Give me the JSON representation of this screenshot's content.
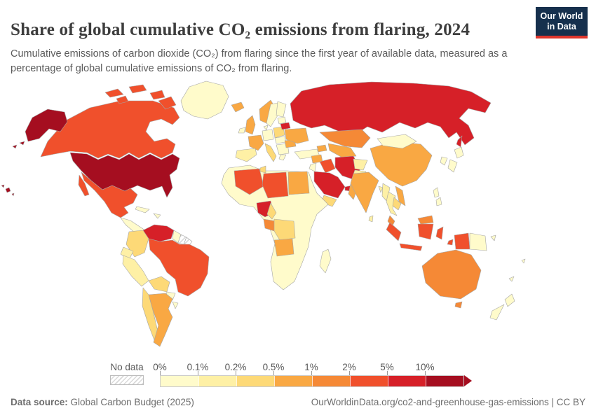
{
  "header": {
    "title": "Share of global cumulative CO₂ emissions from flaring, 2024",
    "subtitle": "Cumulative emissions of carbon dioxide (CO₂) from flaring since the first year of available data, measured as a percentage of global cumulative emissions of CO₂ from flaring.",
    "logo": {
      "line1": "Our World",
      "line2": "in Data",
      "bg": "#16304D",
      "accent": "#DE352C"
    }
  },
  "legend": {
    "no_data_label": "No data",
    "tick_labels": [
      "0%",
      "0.1%",
      "0.2%",
      "0.5%",
      "1%",
      "2%",
      "5%",
      "10%"
    ],
    "bin_colors": [
      "#FFFBCB",
      "#FEF0A5",
      "#FDD977",
      "#F9A843",
      "#F58936",
      "#F0502C",
      "#D62028",
      "#A50E20"
    ]
  },
  "footer": {
    "source_label": "Data source:",
    "source_value": "Global Carbon Budget (2025)",
    "link": "OurWorldinData.org/co2-and-greenhouse-gas-emissions",
    "separator": " | ",
    "license": "CC BY"
  },
  "chart_data": {
    "type": "heatmap",
    "subtype": "world-choropleth-map",
    "title": "Share of global cumulative CO₂ emissions from flaring, 2024",
    "year": "2024",
    "unit": "% of global cumulative CO₂ emissions from flaring",
    "scale_thresholds": [
      "0%",
      "0.1%",
      "0.2%",
      "0.5%",
      "1%",
      "2%",
      "5%",
      "10%"
    ],
    "bin_labels": [
      "<0.1%",
      "0.1–0.2%",
      "0.2–0.5%",
      "0.5–1%",
      "1–2%",
      "2–5%",
      "5–10%",
      ">10%"
    ],
    "bin_colors": [
      "#FFFBCB",
      "#FEF0A5",
      "#FDD977",
      "#F9A843",
      "#F58936",
      "#F0502C",
      "#D62028",
      "#A50E20"
    ],
    "no_data_label": "No data",
    "source": "Global Carbon Budget (2025)",
    "regions": [
      {
        "id": "united-states",
        "name": "United States",
        "bin_index": 7
      },
      {
        "id": "russia",
        "name": "Russia",
        "bin_index": 6
      },
      {
        "id": "venezuela",
        "name": "Venezuela",
        "bin_index": 6
      },
      {
        "id": "nigeria",
        "name": "Nigeria",
        "bin_index": 6
      },
      {
        "id": "saudi-arabia",
        "name": "Saudi Arabia",
        "bin_index": 6
      },
      {
        "id": "iran",
        "name": "Iran",
        "bin_index": 6
      },
      {
        "id": "belarus",
        "name": "Belarus",
        "bin_index": 6
      },
      {
        "id": "united-arab-emirates",
        "name": "United Arab Emirates",
        "bin_index": 6
      },
      {
        "id": "canada",
        "name": "Canada",
        "bin_index": 5
      },
      {
        "id": "mexico",
        "name": "Mexico",
        "bin_index": 5
      },
      {
        "id": "brazil",
        "name": "Brazil",
        "bin_index": 5
      },
      {
        "id": "algeria",
        "name": "Algeria",
        "bin_index": 5
      },
      {
        "id": "libya",
        "name": "Libya",
        "bin_index": 5
      },
      {
        "id": "iraq",
        "name": "Iraq",
        "bin_index": 5
      },
      {
        "id": "indonesia",
        "name": "Indonesia",
        "bin_index": 5
      },
      {
        "id": "australia",
        "name": "Australia",
        "bin_index": 4
      },
      {
        "id": "malaysia",
        "name": "Malaysia",
        "bin_index": 4
      },
      {
        "id": "kazakhstan",
        "name": "Kazakhstan",
        "bin_index": 4
      },
      {
        "id": "gabon",
        "name": "Gabon",
        "bin_index": 4
      },
      {
        "id": "china",
        "name": "China",
        "bin_index": 3
      },
      {
        "id": "india",
        "name": "India",
        "bin_index": 3
      },
      {
        "id": "argentina",
        "name": "Argentina",
        "bin_index": 3
      },
      {
        "id": "egypt",
        "name": "Egypt",
        "bin_index": 3
      },
      {
        "id": "ukraine",
        "name": "Ukraine",
        "bin_index": 3
      },
      {
        "id": "romania",
        "name": "Romania",
        "bin_index": 3
      },
      {
        "id": "france",
        "name": "France",
        "bin_index": 3
      },
      {
        "id": "united-kingdom",
        "name": "United Kingdom",
        "bin_index": 3
      },
      {
        "id": "norway",
        "name": "Norway",
        "bin_index": 3
      },
      {
        "id": "iceland",
        "name": "Iceland",
        "bin_index": 3
      },
      {
        "id": "vietnam",
        "name": "Vietnam",
        "bin_index": 3
      },
      {
        "id": "uzbekistan",
        "name": "Uzbekistan",
        "bin_index": 3
      },
      {
        "id": "oman",
        "name": "Oman",
        "bin_index": 3
      },
      {
        "id": "syria",
        "name": "Syria",
        "bin_index": 3
      },
      {
        "id": "angola",
        "name": "Angola",
        "bin_index": 3
      },
      {
        "id": "azerbaijan",
        "name": "Azerbaijan",
        "bin_index": 3
      },
      {
        "id": "colombia",
        "name": "Colombia",
        "bin_index": 2
      },
      {
        "id": "bolivia",
        "name": "Bolivia",
        "bin_index": 2
      },
      {
        "id": "chile",
        "name": "Chile",
        "bin_index": 2
      },
      {
        "id": "democratic-republic-of-congo",
        "name": "Democratic Republic of Congo",
        "bin_index": 2
      },
      {
        "id": "cameroon",
        "name": "Cameroon",
        "bin_index": 2
      },
      {
        "id": "yemen",
        "name": "Yemen",
        "bin_index": 2
      },
      {
        "id": "italy",
        "name": "Italy",
        "bin_index": 2
      },
      {
        "id": "poland",
        "name": "Poland",
        "bin_index": 2
      },
      {
        "id": "tunisia",
        "name": "Tunisia",
        "bin_index": 2
      },
      {
        "id": "cambodia",
        "name": "Cambodia",
        "bin_index": 2
      },
      {
        "id": "spain",
        "name": "Spain",
        "bin_index": 1
      },
      {
        "id": "ecuador",
        "name": "Ecuador",
        "bin_index": 1
      },
      {
        "id": "peru",
        "name": "Peru",
        "bin_index": 1
      },
      {
        "id": "myanmar",
        "name": "Myanmar",
        "bin_index": 1
      },
      {
        "id": "thailand",
        "name": "Thailand",
        "bin_index": 1
      },
      {
        "id": "bangladesh",
        "name": "Bangladesh",
        "bin_index": 1
      },
      {
        "id": "afghanistan",
        "name": "Afghanistan",
        "bin_index": 1
      },
      {
        "id": "pakistan",
        "name": "Pakistan",
        "bin_index": 1
      },
      {
        "id": "sri-lanka",
        "name": "Sri Lanka",
        "bin_index": 1
      },
      {
        "id": "greenland",
        "name": "Greenland",
        "bin_index": 0
      },
      {
        "id": "germany",
        "name": "Germany",
        "bin_index": 0
      },
      {
        "id": "sweden",
        "name": "Sweden",
        "bin_index": 0
      },
      {
        "id": "finland",
        "name": "Finland",
        "bin_index": 0
      },
      {
        "id": "denmark",
        "name": "Denmark",
        "bin_index": 0
      },
      {
        "id": "ireland",
        "name": "Ireland",
        "bin_index": 0
      },
      {
        "id": "baltics",
        "name": "Baltic states",
        "bin_index": 0
      },
      {
        "id": "central-europe",
        "name": "Central Europe",
        "bin_index": 0
      },
      {
        "id": "balkans",
        "name": "Balkans",
        "bin_index": 0
      },
      {
        "id": "greece",
        "name": "Greece",
        "bin_index": 0
      },
      {
        "id": "turkey",
        "name": "Turkey",
        "bin_index": 0
      },
      {
        "id": "jordan",
        "name": "Jordan",
        "bin_index": 0
      },
      {
        "id": "japan",
        "name": "Japan",
        "bin_index": 0
      },
      {
        "id": "south-korea",
        "name": "South Korea",
        "bin_index": 0
      },
      {
        "id": "mongolia",
        "name": "Mongolia",
        "bin_index": 0
      },
      {
        "id": "paraguay",
        "name": "Paraguay",
        "bin_index": 0
      },
      {
        "id": "uruguay",
        "name": "Uruguay",
        "bin_index": 0
      },
      {
        "id": "guyana",
        "name": "Guyana",
        "bin_index": 0
      },
      {
        "id": "cuba",
        "name": "Cuba",
        "bin_index": 0
      },
      {
        "id": "hispaniola",
        "name": "Hispaniola",
        "bin_index": 0
      },
      {
        "id": "central-america",
        "name": "Central America",
        "bin_index": 0
      },
      {
        "id": "africa-other",
        "name": "Other African countries",
        "bin_index": 0
      },
      {
        "id": "madagascar",
        "name": "Madagascar",
        "bin_index": 0
      },
      {
        "id": "new-zealand",
        "name": "New Zealand",
        "bin_index": 0
      },
      {
        "id": "papua-new-guinea",
        "name": "Papua New Guinea",
        "bin_index": 0
      },
      {
        "id": "philippines",
        "name": "Philippines",
        "bin_index": 0
      },
      {
        "id": "pacific-islands",
        "name": "Pacific islands",
        "bin_index": 0
      },
      {
        "id": "suriname",
        "name": "Suriname",
        "bin_index": -1
      },
      {
        "id": "french-guiana",
        "name": "French Guiana",
        "bin_index": -1
      }
    ]
  },
  "map": {
    "stroke": "#a6a6a6",
    "ocean": "#ffffff"
  }
}
